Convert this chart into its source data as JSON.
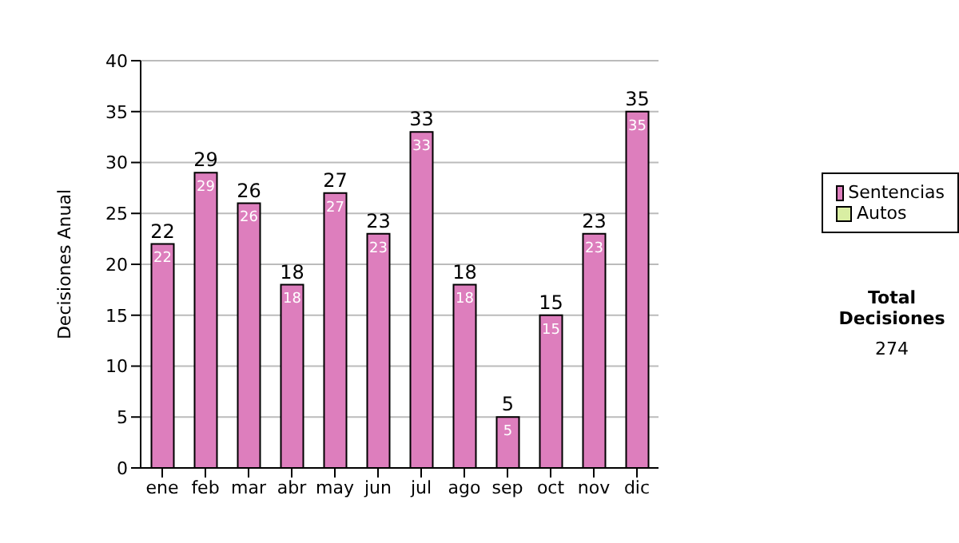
{
  "chart_data": {
    "type": "bar",
    "ylabel": "Decisiones Anual",
    "categories": [
      "ene",
      "feb",
      "mar",
      "abr",
      "may",
      "jun",
      "jul",
      "ago",
      "sep",
      "oct",
      "nov",
      "dic"
    ],
    "series": [
      {
        "name": "Sentencias",
        "color": "#dd7ebd",
        "values": [
          22,
          29,
          26,
          18,
          27,
          23,
          33,
          18,
          5,
          15,
          23,
          35
        ]
      },
      {
        "name": "Autos",
        "color": "#d9eea3",
        "values": [
          null,
          null,
          null,
          null,
          null,
          null,
          null,
          null,
          null,
          null,
          null,
          null
        ]
      }
    ],
    "stacked": true,
    "data_labels": true,
    "totals": [
      "22",
      "29",
      "26",
      "18",
      "27",
      "23",
      "33",
      "18",
      "5",
      "15",
      "23",
      "35"
    ],
    "ylim": [
      0,
      40
    ],
    "yticks": [
      0,
      5,
      10,
      15,
      20,
      25,
      30,
      35,
      40
    ],
    "grid": "y",
    "legend": "right",
    "annotations": [
      "Total Decisiones",
      "274"
    ]
  }
}
